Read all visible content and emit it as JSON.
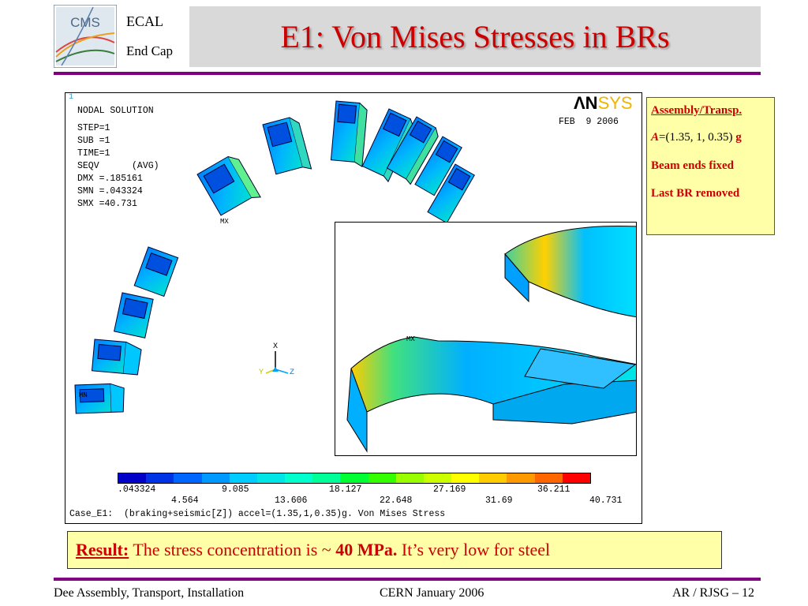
{
  "header": {
    "logo_text": "CMS",
    "group_line1": "ECAL",
    "group_line2": "End Cap",
    "title": "E1: Von Mises Stresses in BRs"
  },
  "plot": {
    "corner_mark": "1",
    "info": [
      "NODAL SOLUTION",
      "STEP=1",
      "SUB =1",
      "TIME=1",
      "SEQV      (AVG)",
      "DMX =.185161",
      "SMN =.043324",
      "SMX =40.731"
    ],
    "brand_an": "ΛN",
    "brand_sys": "SYS",
    "date": "FEB  9 2006",
    "marker_mx": "MX",
    "marker_mn": "MN",
    "axis": {
      "x": "X",
      "y": "Y",
      "z": "Z"
    },
    "legend_values_top": [
      ".043324",
      "9.085",
      "18.127",
      "27.169",
      "36.211"
    ],
    "legend_values_bottom": [
      "4.564",
      "13.606",
      "22.648",
      "31.69",
      "40.731"
    ],
    "legend_colors": [
      "#0000c8",
      "#0033e6",
      "#0066ff",
      "#0099ff",
      "#00ccff",
      "#00e6e6",
      "#00ffcc",
      "#00ff99",
      "#00ff33",
      "#33ff00",
      "#99ff00",
      "#ccff00",
      "#ffff00",
      "#ffcc00",
      "#ff9900",
      "#ff6600",
      "#ff0000"
    ],
    "caption": "Case_E1:  (braking+seismic[Z]) accel=(1.35,1,0.35)g. Von Mises Stress"
  },
  "notes": {
    "line1": "Assembly/Transp.",
    "line2_a": "A",
    "line2_b": "=(1.35, 1, 0.35) ",
    "line2_g": "g",
    "line3": "Beam ends fixed",
    "line4": "Last BR removed"
  },
  "result": {
    "label": "Result:",
    "text1": " The stress concentration is ~ ",
    "value": "40 MPa.",
    "text2": " It’s very low for steel"
  },
  "footer": {
    "left": "Dee Assembly, Transport, Installation",
    "center": "CERN  January 2006",
    "right": "AR / RJSG – 12"
  },
  "colors": {
    "title": "#cc0000",
    "rule": "#800080",
    "note_bg": "#ffffa8",
    "title_bar": "#d9d9d9"
  }
}
